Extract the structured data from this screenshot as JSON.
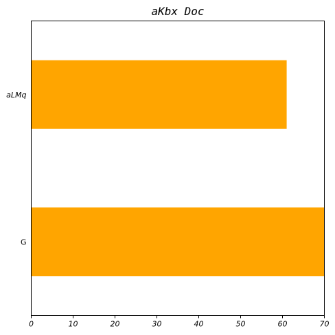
{
  "chart_data": {
    "type": "bar",
    "orientation": "horizontal",
    "title": "aKbx Doc",
    "xlabel": "",
    "ylabel": "",
    "categories": [
      "aLMq",
      "G"
    ],
    "values": [
      61,
      71
    ],
    "xlim": [
      0,
      70
    ],
    "xticks": [
      0,
      10,
      20,
      30,
      40,
      50,
      60,
      70
    ],
    "grid": false,
    "bar_color": "#FFA500"
  }
}
